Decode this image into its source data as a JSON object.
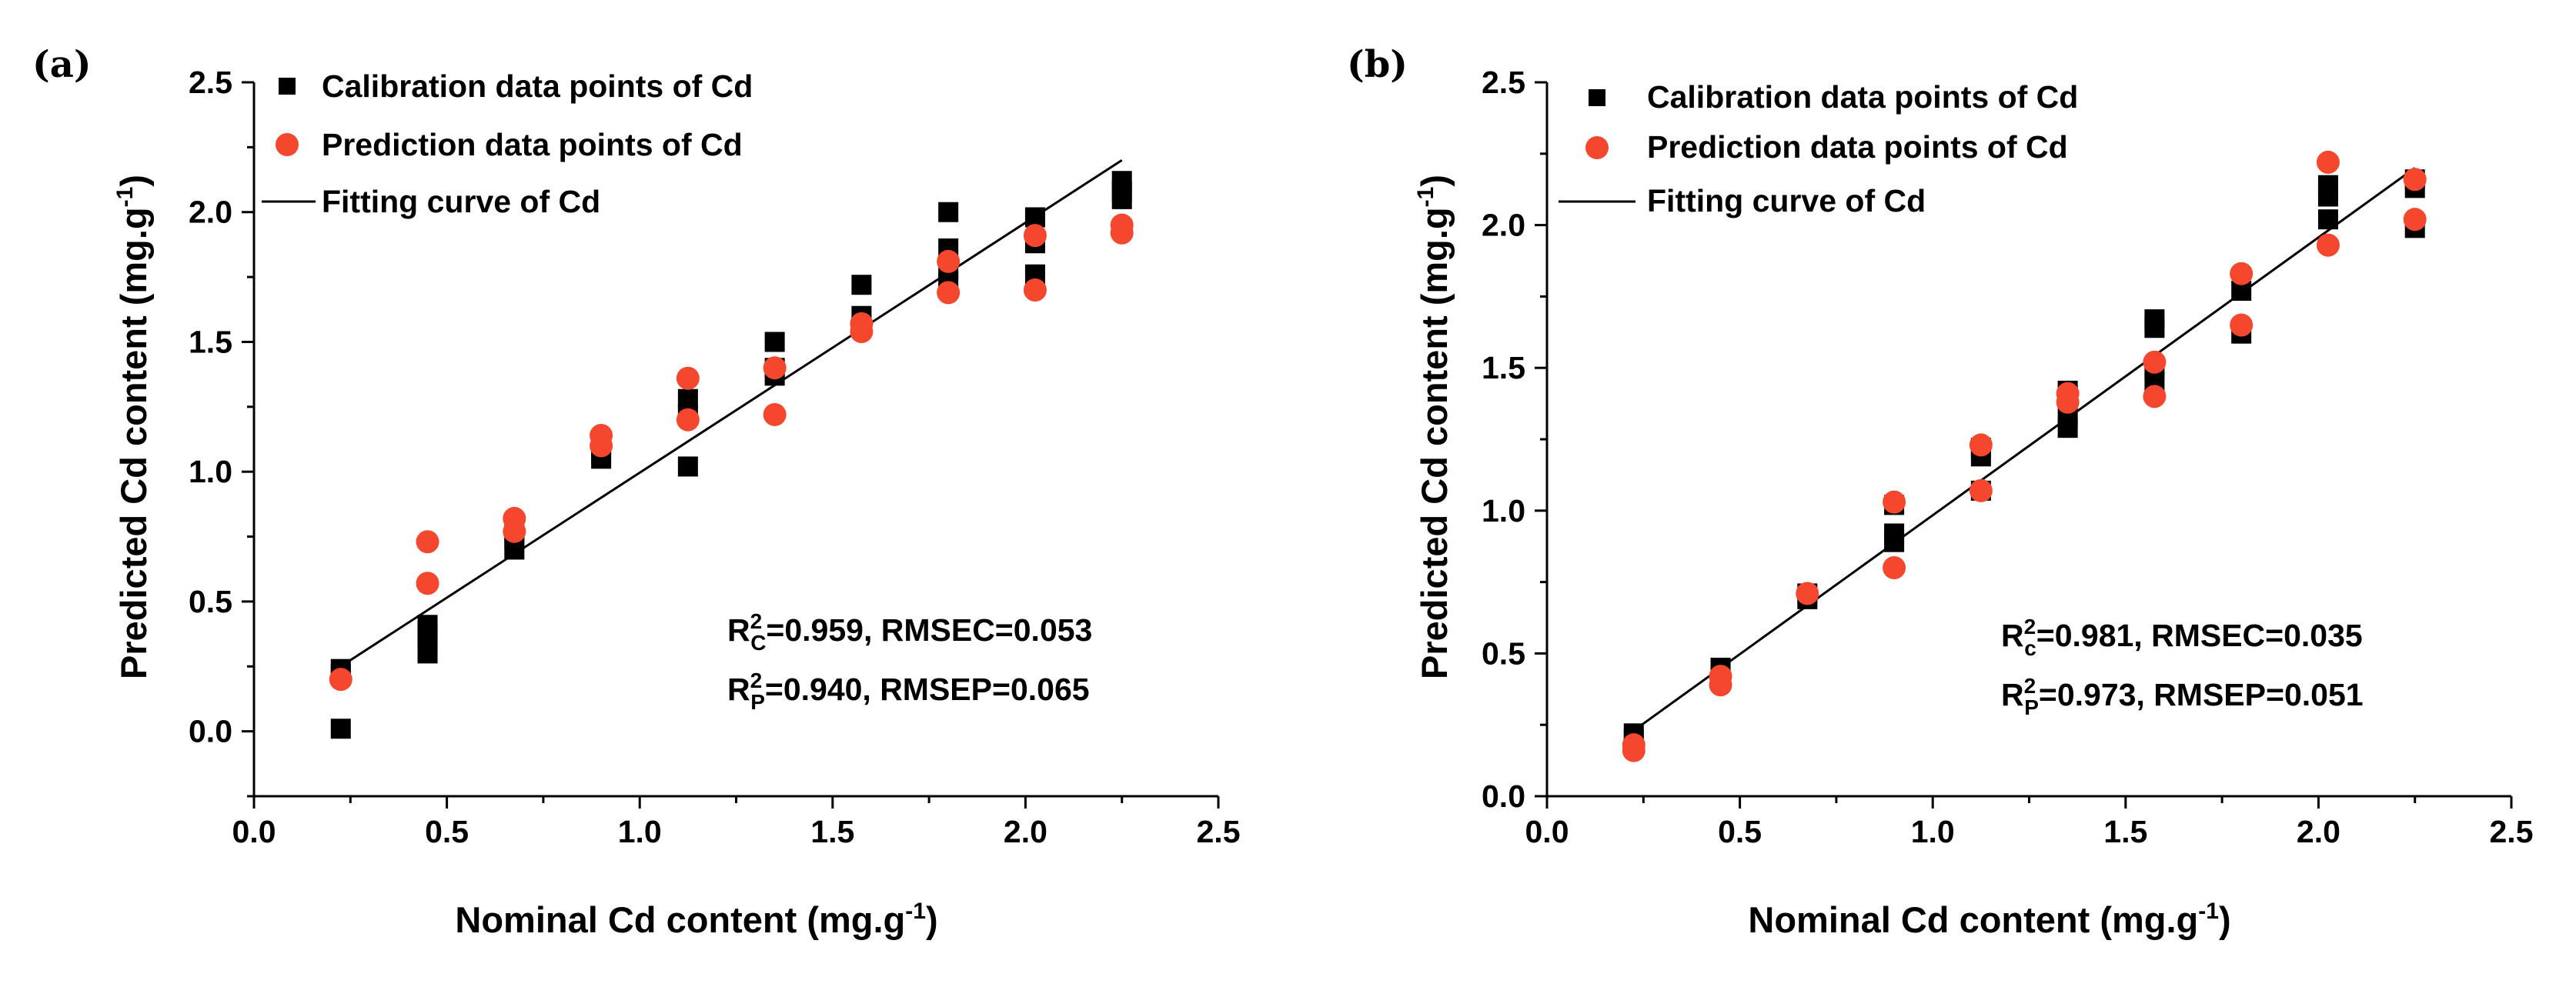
{
  "chart_data": [
    {
      "type": "scatter",
      "panel_label": "(a)",
      "xlabel": "Nominal Cd content (mg.g",
      "xlabel_sup": "-1",
      "xlabel_end": ")",
      "ylabel": "Predicted Cd content (mg.g",
      "ylabel_sup": "-1",
      "ylabel_end": ")",
      "xlim": [
        0,
        2.5
      ],
      "ylim": [
        -0.25,
        2.5
      ],
      "xticks": [
        0.0,
        0.5,
        1.0,
        1.5,
        2.0,
        2.5
      ],
      "xtick_labels": [
        "0.0",
        "0.5",
        "1.0",
        "1.5",
        "2.0",
        "2.5"
      ],
      "yticks": [
        0.0,
        0.5,
        1.0,
        1.5,
        2.0,
        2.5
      ],
      "ytick_labels": [
        "0.0",
        "0.5",
        "1.0",
        "1.5",
        "2.0",
        "2.5"
      ],
      "legend": {
        "position": "top-left",
        "calibration": "Calibration data points of Cd",
        "prediction": "Prediction data points of Cd",
        "fit": "Fitting curve of Cd"
      },
      "stats": {
        "line1": {
          "r": "R",
          "sup": "2",
          "sub": "C",
          "rest": "=0.959, RMSEC=0.053"
        },
        "line2": {
          "r": "R",
          "sup": "2",
          "sub": "P",
          "rest": "=0.940, RMSEP=0.065"
        }
      },
      "fit_line": {
        "x": [
          0.225,
          2.25
        ],
        "y": [
          0.25,
          2.2
        ]
      },
      "series": [
        {
          "name": "Calibration data points of Cd",
          "marker": "square",
          "color": "#000000",
          "points": [
            [
              0.225,
              0.01
            ],
            [
              0.225,
              0.22
            ],
            [
              0.225,
              0.24
            ],
            [
              0.45,
              0.3
            ],
            [
              0.45,
              0.35
            ],
            [
              0.45,
              0.38
            ],
            [
              0.45,
              0.41
            ],
            [
              0.675,
              0.7
            ],
            [
              0.675,
              0.74
            ],
            [
              0.675,
              0.77
            ],
            [
              0.9,
              1.05
            ],
            [
              0.9,
              1.07
            ],
            [
              0.9,
              1.1
            ],
            [
              1.125,
              1.02
            ],
            [
              1.125,
              1.22
            ],
            [
              1.125,
              1.28
            ],
            [
              1.35,
              1.37
            ],
            [
              1.35,
              1.4
            ],
            [
              1.35,
              1.5
            ],
            [
              1.575,
              1.56
            ],
            [
              1.575,
              1.6
            ],
            [
              1.575,
              1.72
            ],
            [
              1.8,
              1.73
            ],
            [
              1.8,
              1.78
            ],
            [
              1.8,
              1.86
            ],
            [
              1.8,
              2.0
            ],
            [
              2.025,
              1.76
            ],
            [
              2.025,
              1.88
            ],
            [
              2.025,
              1.98
            ],
            [
              2.25,
              2.05
            ],
            [
              2.25,
              2.08
            ],
            [
              2.25,
              2.12
            ]
          ]
        },
        {
          "name": "Prediction data points of Cd",
          "marker": "circle",
          "color": "#f4472d",
          "points": [
            [
              0.225,
              0.2
            ],
            [
              0.45,
              0.57
            ],
            [
              0.45,
              0.73
            ],
            [
              0.675,
              0.77
            ],
            [
              0.675,
              0.82
            ],
            [
              0.9,
              1.1
            ],
            [
              0.9,
              1.14
            ],
            [
              1.125,
              1.2
            ],
            [
              1.125,
              1.36
            ],
            [
              1.35,
              1.22
            ],
            [
              1.35,
              1.4
            ],
            [
              1.575,
              1.54
            ],
            [
              1.575,
              1.57
            ],
            [
              1.8,
              1.69
            ],
            [
              1.8,
              1.81
            ],
            [
              2.025,
              1.7
            ],
            [
              2.025,
              1.91
            ],
            [
              2.25,
              1.92
            ],
            [
              2.25,
              1.95
            ]
          ]
        }
      ]
    },
    {
      "type": "scatter",
      "panel_label": "(b)",
      "xlabel": "Nominal Cd content (mg.g",
      "xlabel_sup": "-1",
      "xlabel_end": ")",
      "ylabel": "Predicted Cd content (mg.g",
      "ylabel_sup": "-1",
      "ylabel_end": ")",
      "xlim": [
        0,
        2.5
      ],
      "ylim": [
        0,
        2.5
      ],
      "xticks": [
        0.0,
        0.5,
        1.0,
        1.5,
        2.0,
        2.5
      ],
      "xtick_labels": [
        "0.0",
        "0.5",
        "1.0",
        "1.5",
        "2.0",
        "2.5"
      ],
      "yticks": [
        0.0,
        0.5,
        1.0,
        1.5,
        2.0,
        2.5
      ],
      "ytick_labels": [
        "0.0",
        "0.5",
        "1.0",
        "1.5",
        "2.0",
        "2.5"
      ],
      "legend": {
        "position": "top-left",
        "calibration": "Calibration data points of Cd",
        "prediction": "Prediction data points of Cd",
        "fit": "Fitting curve of Cd"
      },
      "stats": {
        "line1": {
          "r": "R",
          "sup": "2",
          "sub": "c",
          "rest": "=0.981, RMSEC=0.035"
        },
        "line2": {
          "r": "R",
          "sup": "2",
          "sub": "P",
          "rest": "=0.973, RMSEP=0.051"
        }
      },
      "fit_line": {
        "x": [
          0.225,
          2.25
        ],
        "y": [
          0.23,
          2.2
        ]
      },
      "series": [
        {
          "name": "Calibration data points of Cd",
          "marker": "square",
          "color": "#000000",
          "points": [
            [
              0.225,
              0.2
            ],
            [
              0.225,
              0.22
            ],
            [
              0.45,
              0.43
            ],
            [
              0.45,
              0.45
            ],
            [
              0.675,
              0.69
            ],
            [
              0.675,
              0.71
            ],
            [
              0.9,
              0.89
            ],
            [
              0.9,
              0.92
            ],
            [
              0.9,
              1.02
            ],
            [
              1.125,
              1.07
            ],
            [
              1.125,
              1.19
            ],
            [
              1.125,
              1.22
            ],
            [
              1.35,
              1.29
            ],
            [
              1.35,
              1.33
            ],
            [
              1.35,
              1.4
            ],
            [
              1.35,
              1.42
            ],
            [
              1.575,
              1.45
            ],
            [
              1.575,
              1.5
            ],
            [
              1.575,
              1.64
            ],
            [
              1.575,
              1.67
            ],
            [
              1.8,
              1.62
            ],
            [
              1.8,
              1.77
            ],
            [
              2.025,
              2.02
            ],
            [
              2.025,
              2.1
            ],
            [
              2.025,
              2.14
            ],
            [
              2.25,
              1.99
            ],
            [
              2.25,
              2.13
            ],
            [
              2.25,
              2.16
            ]
          ]
        },
        {
          "name": "Prediction data points of Cd",
          "marker": "circle",
          "color": "#f4472d",
          "points": [
            [
              0.225,
              0.16
            ],
            [
              0.225,
              0.18
            ],
            [
              0.45,
              0.39
            ],
            [
              0.45,
              0.42
            ],
            [
              0.675,
              0.71
            ],
            [
              0.9,
              0.8
            ],
            [
              0.9,
              1.03
            ],
            [
              1.125,
              1.07
            ],
            [
              1.125,
              1.23
            ],
            [
              1.35,
              1.38
            ],
            [
              1.35,
              1.41
            ],
            [
              1.575,
              1.4
            ],
            [
              1.575,
              1.52
            ],
            [
              1.8,
              1.65
            ],
            [
              1.8,
              1.83
            ],
            [
              2.025,
              1.93
            ],
            [
              2.025,
              2.22
            ],
            [
              2.25,
              2.02
            ],
            [
              2.25,
              2.16
            ]
          ]
        }
      ]
    }
  ]
}
